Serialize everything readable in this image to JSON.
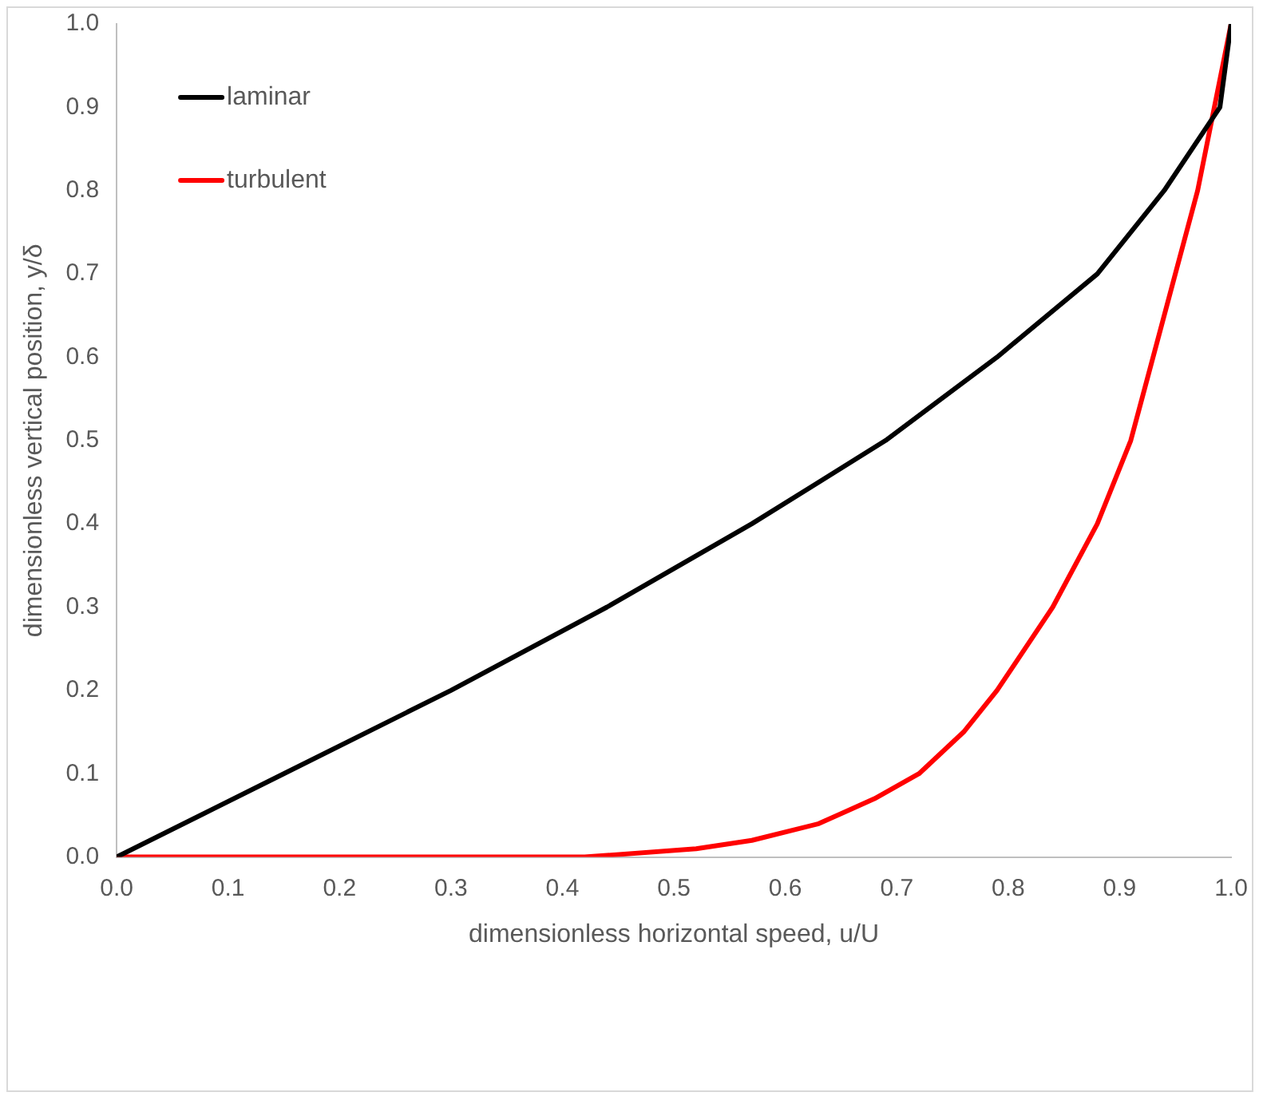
{
  "chart_data": {
    "type": "line",
    "xlabel": "dimensionless horizontal speed, u/U",
    "ylabel": "dimensionless vertical position, y/δ",
    "xlim": [
      0,
      1
    ],
    "ylim": [
      0,
      1
    ],
    "xticks": [
      {
        "value": 0,
        "label": "0.0"
      },
      0.1,
      0.2,
      0.3,
      0.4,
      0.5,
      0.6,
      0.7,
      0.8,
      0.9,
      {
        "value": 1,
        "label": "1.0"
      }
    ],
    "yticks": [
      {
        "value": 0,
        "label": "0.0"
      },
      0.1,
      0.2,
      0.3,
      0.4,
      0.5,
      0.6,
      0.7,
      0.8,
      0.9,
      {
        "value": 1,
        "label": "1.0"
      }
    ],
    "grid": false,
    "legend": "top left",
    "marker": "none",
    "line_style": "solid",
    "series": [
      {
        "name": "laminar",
        "color": "#000000",
        "x": [
          0,
          0.15,
          0.3,
          0.44,
          0.57,
          0.69,
          0.79,
          0.88,
          0.94,
          0.99,
          1
        ],
        "values": [
          0,
          0.1,
          0.2,
          0.3,
          0.4,
          0.5,
          0.6,
          0.7,
          0.8,
          0.9,
          1
        ]
      },
      {
        "name": "turbulent",
        "color": "#ff0000",
        "x": [
          0,
          0.42,
          0.52,
          0.57,
          0.63,
          0.68,
          0.72,
          0.76,
          0.79,
          0.84,
          0.88,
          0.91,
          0.93,
          0.95,
          0.97,
          0.985,
          1
        ],
        "values": [
          0,
          0,
          0.01,
          0.02,
          0.04,
          0.07,
          0.1,
          0.15,
          0.2,
          0.3,
          0.4,
          0.5,
          0.6,
          0.7,
          0.8,
          0.9,
          1
        ]
      }
    ]
  }
}
